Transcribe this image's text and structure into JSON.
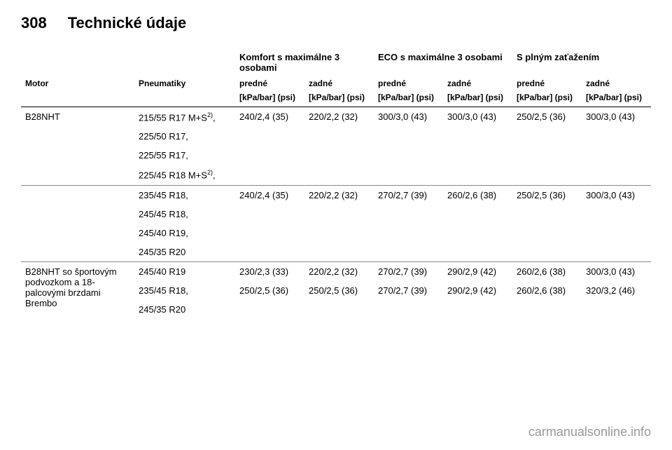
{
  "header": {
    "page_number": "308",
    "page_title": "Technické údaje"
  },
  "table": {
    "group_headers": {
      "comfort": "Komfort s maximálne 3 osobami",
      "eco": "ECO s maximálne 3 osobami",
      "full": "S plným zaťažením"
    },
    "col_headers": {
      "motor": "Motor",
      "tires": "Pneumatiky",
      "front": "predné",
      "rear": "zadné"
    },
    "unit_header": "[kPa/bar] (psi)",
    "sections": [
      {
        "motor": "B28NHT",
        "motor_note": "",
        "rows": [
          {
            "tire": "215/55 R17 M+S",
            "tire_sup": "2)",
            "vals": [
              "240/2,4 (35)",
              "220/2,2 (32)",
              "300/3,0 (43)",
              "300/3,0 (43)",
              "250/2,5 (36)",
              "300/3,0 (43)"
            ]
          },
          {
            "tire": "225/50 R17,",
            "tire_sup": "",
            "vals": [
              "",
              "",
              "",
              "",
              "",
              ""
            ]
          },
          {
            "tire": "225/55 R17,",
            "tire_sup": "",
            "vals": [
              "",
              "",
              "",
              "",
              "",
              ""
            ]
          },
          {
            "tire": "225/45 R18 M+S",
            "tire_sup": "2)",
            "vals": [
              "",
              "",
              "",
              "",
              "",
              ""
            ]
          }
        ]
      },
      {
        "motor": "",
        "motor_note": "",
        "rows": [
          {
            "tire": "235/45 R18,",
            "tire_sup": "",
            "vals": [
              "240/2,4 (35)",
              "220/2,2 (32)",
              "270/2,7 (39)",
              "260/2,6 (38)",
              "250/2,5 (36)",
              "300/3,0 (43)"
            ]
          },
          {
            "tire": "245/45 R18,",
            "tire_sup": "",
            "vals": [
              "",
              "",
              "",
              "",
              "",
              ""
            ]
          },
          {
            "tire": "245/40 R19,",
            "tire_sup": "",
            "vals": [
              "",
              "",
              "",
              "",
              "",
              ""
            ]
          },
          {
            "tire": "245/35 R20",
            "tire_sup": "",
            "vals": [
              "",
              "",
              "",
              "",
              "",
              ""
            ]
          }
        ]
      },
      {
        "motor": "B28NHT so športovým podvozkom a 18-palcovými brzdami Brembo",
        "motor_note": "",
        "rows": [
          {
            "tire": "245/40 R19",
            "tire_sup": "",
            "vals": [
              "230/2,3 (33)",
              "220/2,2 (32)",
              "270/2,7 (39)",
              "290/2,9 (42)",
              "260/2,6 (38)",
              "300/3,0 (43)"
            ]
          },
          {
            "tire": "235/45 R18,",
            "tire_sup": "",
            "vals": [
              "250/2,5 (36)",
              "250/2,5 (36)",
              "270/2,7 (39)",
              "290/2,9 (42)",
              "260/2,6 (38)",
              "320/3,2 (46)"
            ]
          },
          {
            "tire": "245/35 R20",
            "tire_sup": "",
            "vals": [
              "",
              "",
              "",
              "",
              "",
              ""
            ]
          }
        ]
      }
    ]
  },
  "watermark": "carmanualsonline.info"
}
